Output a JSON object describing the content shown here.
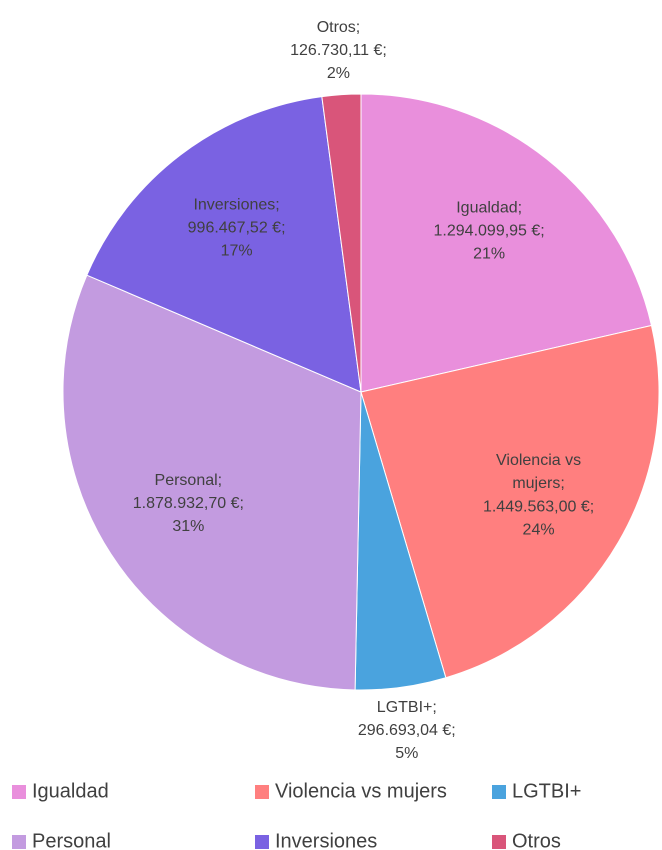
{
  "chart_data": {
    "type": "pie",
    "categories": [
      "Igualdad",
      "Violencia vs mujers",
      "LGTBI+",
      "Personal",
      "Inversiones",
      "Otros"
    ],
    "label_names": [
      "Igualdad;",
      "Violencia vs mujers;",
      "LGTBI+;",
      "Personal;",
      "Inversiones;",
      "Otros;"
    ],
    "values": [
      1294099.95,
      1449563.0,
      296693.04,
      1878932.7,
      996467.52,
      126730.11
    ],
    "value_labels": [
      "1.294.099,95 €;",
      "1.449.563,00 €;",
      "296.693,04 €;",
      "1.878.932,70 €;",
      "996.467,52 €;",
      "126.730,11 €;"
    ],
    "percent_labels": [
      "21%",
      "24%",
      "5%",
      "31%",
      "17%",
      "2%"
    ],
    "colors": [
      "#e98fdc",
      "#ff7f7f",
      "#4aa3de",
      "#c39be0",
      "#7a62e2",
      "#d9557a"
    ],
    "legend": "bottom"
  }
}
